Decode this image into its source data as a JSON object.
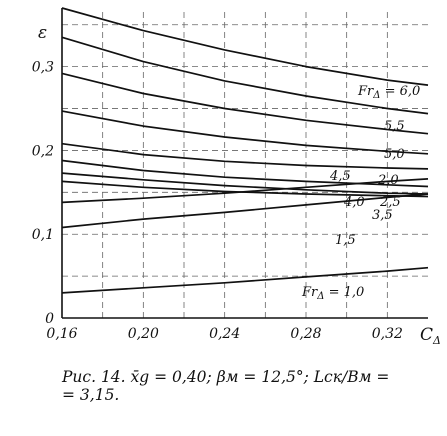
{
  "caption": {
    "line1": "Рис. 14. x̄g = 0,40; βм = 12,5°; Lск/Bм =",
    "line2": "= 3,15."
  },
  "chart_data": {
    "type": "line",
    "ylabel": "ε",
    "xlabel": "CΔ",
    "xlim": [
      0.16,
      0.34
    ],
    "ylim": [
      0,
      0.37
    ],
    "xticks": [
      0.16,
      0.2,
      0.24,
      0.28,
      0.32
    ],
    "xtick_labels": [
      "0,16",
      "0,20",
      "0,24",
      "0,28",
      "0,32"
    ],
    "yticks": [
      0,
      0.1,
      0.2,
      0.3
    ],
    "ytick_labels": [
      "0",
      "0,1",
      "0,2",
      "0,3"
    ],
    "grid": true,
    "series": [
      {
        "name": "Fr_Δ = 6,0",
        "label_parts": [
          "Fr",
          "Δ",
          " = 6,0"
        ],
        "x": [
          0.16,
          0.2,
          0.24,
          0.28,
          0.32,
          0.34
        ],
        "y": [
          0.37,
          0.343,
          0.32,
          0.3,
          0.284,
          0.278
        ]
      },
      {
        "name": "5,5",
        "label_parts": [
          "",
          "",
          "5,5"
        ],
        "x": [
          0.16,
          0.2,
          0.24,
          0.28,
          0.32,
          0.34
        ],
        "y": [
          0.335,
          0.306,
          0.283,
          0.265,
          0.25,
          0.244
        ]
      },
      {
        "name": "5,0",
        "label_parts": [
          "",
          "",
          "5,0"
        ],
        "x": [
          0.16,
          0.2,
          0.24,
          0.28,
          0.32,
          0.34
        ],
        "y": [
          0.292,
          0.268,
          0.25,
          0.236,
          0.225,
          0.22
        ]
      },
      {
        "name": "4,5",
        "label_parts": [
          "",
          "",
          "4,5"
        ],
        "x": [
          0.16,
          0.2,
          0.24,
          0.28,
          0.32,
          0.34
        ],
        "y": [
          0.247,
          0.229,
          0.216,
          0.206,
          0.199,
          0.196
        ]
      },
      {
        "name": "2,0",
        "label_parts": [
          "",
          "",
          "2,0"
        ],
        "x": [
          0.16,
          0.2,
          0.24,
          0.28,
          0.32,
          0.34
        ],
        "y": [
          0.208,
          0.195,
          0.187,
          0.182,
          0.179,
          0.178
        ]
      },
      {
        "name": "4,0",
        "label_parts": [
          "",
          "",
          "4,0"
        ],
        "x": [
          0.16,
          0.2,
          0.24,
          0.28,
          0.32,
          0.34
        ],
        "y": [
          0.188,
          0.176,
          0.168,
          0.163,
          0.159,
          0.157
        ]
      },
      {
        "name": "2,5",
        "label_parts": [
          "",
          "",
          "2,5"
        ],
        "x": [
          0.16,
          0.2,
          0.24,
          0.28,
          0.32,
          0.34
        ],
        "y": [
          0.163,
          0.156,
          0.151,
          0.148,
          0.146,
          0.145
        ]
      },
      {
        "name": "3,5",
        "label_parts": [
          "",
          "",
          "3,5"
        ],
        "x": [
          0.16,
          0.2,
          0.24,
          0.28,
          0.32,
          0.34
        ],
        "y": [
          0.173,
          0.165,
          0.158,
          0.153,
          0.149,
          0.148
        ]
      },
      {
        "name": "3,0",
        "label_parts": [
          "",
          "",
          ""
        ],
        "x": [
          0.16,
          0.2,
          0.24,
          0.28,
          0.32,
          0.34
        ],
        "y": [
          0.138,
          0.143,
          0.149,
          0.156,
          0.163,
          0.166
        ]
      },
      {
        "name": "1,5",
        "label_parts": [
          "",
          "",
          "1,5"
        ],
        "x": [
          0.16,
          0.2,
          0.24,
          0.28,
          0.32,
          0.34
        ],
        "y": [
          0.108,
          0.118,
          0.126,
          0.135,
          0.144,
          0.148
        ]
      },
      {
        "name": "Fr_Δ = 1,0",
        "label_parts": [
          "Fr",
          "Δ",
          " = 1,0"
        ],
        "x": [
          0.16,
          0.2,
          0.24,
          0.28,
          0.32,
          0.34
        ],
        "y": [
          0.03,
          0.036,
          0.042,
          0.049,
          0.056,
          0.06
        ]
      }
    ]
  }
}
